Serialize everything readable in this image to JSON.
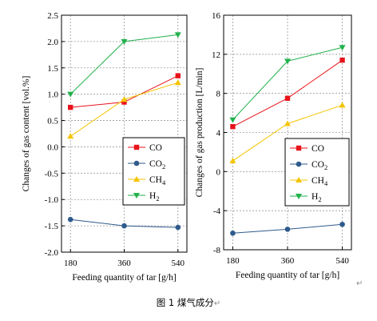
{
  "chart_data": [
    {
      "type": "line",
      "x": [
        180,
        360,
        540
      ],
      "xticks": [
        "180",
        "360",
        "540"
      ],
      "xlabel": "Feeding quantity of tar [g/h]",
      "ylabel": "Changes of gas content [vol.%]",
      "ylim": [
        -2.0,
        2.5
      ],
      "yticks": [
        -2.0,
        -1.5,
        -1.0,
        -0.5,
        0.0,
        0.5,
        1.0,
        1.5,
        2.0,
        2.5
      ],
      "ytick_labels": [
        "-2.0",
        "-1.5",
        "-1.0",
        "-0.5",
        "0.0",
        "0.5",
        "1.0",
        "1.5",
        "2.0",
        "2.5"
      ],
      "grid": true,
      "legend_position": "middle-right",
      "series": [
        {
          "name": "CO",
          "name_base": "CO",
          "name_sub": "",
          "color": "#e8141b",
          "marker": "square",
          "values": [
            0.75,
            0.85,
            1.35
          ]
        },
        {
          "name": "CO2",
          "name_base": "CO",
          "name_sub": "2",
          "color": "#2e5b8c",
          "marker": "circle",
          "values": [
            -1.38,
            -1.5,
            -1.53
          ]
        },
        {
          "name": "CH4",
          "name_base": "CH",
          "name_sub": "4",
          "color": "#f5c400",
          "marker": "triangle-up",
          "values": [
            0.2,
            0.9,
            1.22
          ]
        },
        {
          "name": "H2",
          "name_base": "H",
          "name_sub": "2",
          "color": "#22b24c",
          "marker": "triangle-down",
          "values": [
            1.0,
            2.0,
            2.13
          ]
        }
      ]
    },
    {
      "type": "line",
      "x": [
        180,
        360,
        540
      ],
      "xticks": [
        "180",
        "360",
        "540"
      ],
      "xlabel": "Feeding quantity of tar [g/h]",
      "ylabel": "Changes of gas production [L/min]",
      "ylim": [
        -8,
        16
      ],
      "yticks": [
        -8,
        -4,
        0,
        4,
        8,
        12,
        16
      ],
      "ytick_labels": [
        "-8",
        "-4",
        "0",
        "4",
        "8",
        "12",
        "16"
      ],
      "grid": true,
      "legend_position": "middle-right",
      "series": [
        {
          "name": "CO",
          "name_base": "CO",
          "name_sub": "",
          "color": "#e8141b",
          "marker": "square",
          "values": [
            4.6,
            7.5,
            11.4
          ]
        },
        {
          "name": "CO2",
          "name_base": "CO",
          "name_sub": "2",
          "color": "#2e5b8c",
          "marker": "circle",
          "values": [
            -6.3,
            -5.9,
            -5.4
          ]
        },
        {
          "name": "CH4",
          "name_base": "CH",
          "name_sub": "4",
          "color": "#f5c400",
          "marker": "triangle-up",
          "values": [
            1.1,
            4.9,
            6.8
          ]
        },
        {
          "name": "H2",
          "name_base": "H",
          "name_sub": "2",
          "color": "#22b24c",
          "marker": "triangle-down",
          "values": [
            5.3,
            11.3,
            12.7
          ]
        }
      ]
    }
  ],
  "caption": "图 1 煤气成分",
  "paragraph_mark": "↵"
}
